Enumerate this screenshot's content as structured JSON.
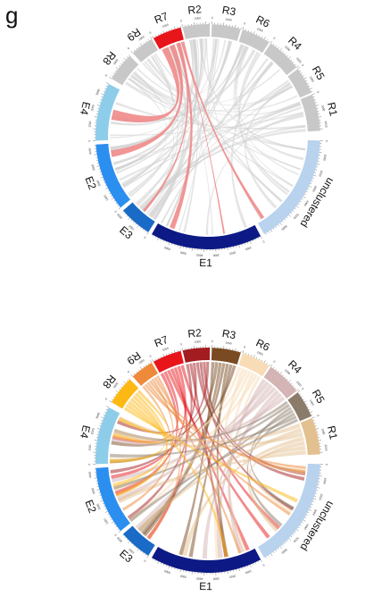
{
  "figure": {
    "panel_letter": "g",
    "tick_label_samples": [
      "0",
      "1000",
      "2000",
      "3000",
      "4000",
      "5000",
      "6000"
    ]
  },
  "diagrams": [
    {
      "id": "top-chord",
      "segments": [
        {
          "label": "R7",
          "color": "#e8151b"
        },
        {
          "label": "R2",
          "color": "#c8c8c8"
        },
        {
          "label": "R3",
          "color": "#c8c8c8"
        },
        {
          "label": "R6",
          "color": "#c8c8c8"
        },
        {
          "label": "R4",
          "color": "#c8c8c8"
        },
        {
          "label": "R5",
          "color": "#c8c8c8"
        },
        {
          "label": "R1",
          "color": "#c8c8c8"
        },
        {
          "label": "unclustered",
          "color": "#b9d2ee"
        },
        {
          "label": "E1",
          "color": "#0d1a85"
        },
        {
          "label": "E3",
          "color": "#1a6bc7"
        },
        {
          "label": "E2",
          "color": "#2b8ff0"
        },
        {
          "label": "E4",
          "color": "#8ecdea"
        },
        {
          "label": "R8",
          "color": "#c8c8c8"
        },
        {
          "label": "R9",
          "color": "#c8c8c8"
        }
      ],
      "highlight_color": "#f08a8a",
      "background_link_color": "#cfcfcf"
    },
    {
      "id": "bottom-chord",
      "segments": [
        {
          "label": "R7",
          "color": "#e8151b"
        },
        {
          "label": "R2",
          "color": "#a31c1f"
        },
        {
          "label": "R3",
          "color": "#7a4a22"
        },
        {
          "label": "R6",
          "color": "#f7dcb6"
        },
        {
          "label": "R4",
          "color": "#d4b4b4"
        },
        {
          "label": "R5",
          "color": "#8b7b6a"
        },
        {
          "label": "R1",
          "color": "#e3c08f"
        },
        {
          "label": "unclustered",
          "color": "#b9d2ee"
        },
        {
          "label": "E1",
          "color": "#0d1a85"
        },
        {
          "label": "E3",
          "color": "#1a6bc7"
        },
        {
          "label": "E2",
          "color": "#2b8ff0"
        },
        {
          "label": "E4",
          "color": "#8ecdea"
        },
        {
          "label": "R8",
          "color": "#fdb813"
        },
        {
          "label": "R9",
          "color": "#ee8a3a"
        }
      ]
    }
  ]
}
